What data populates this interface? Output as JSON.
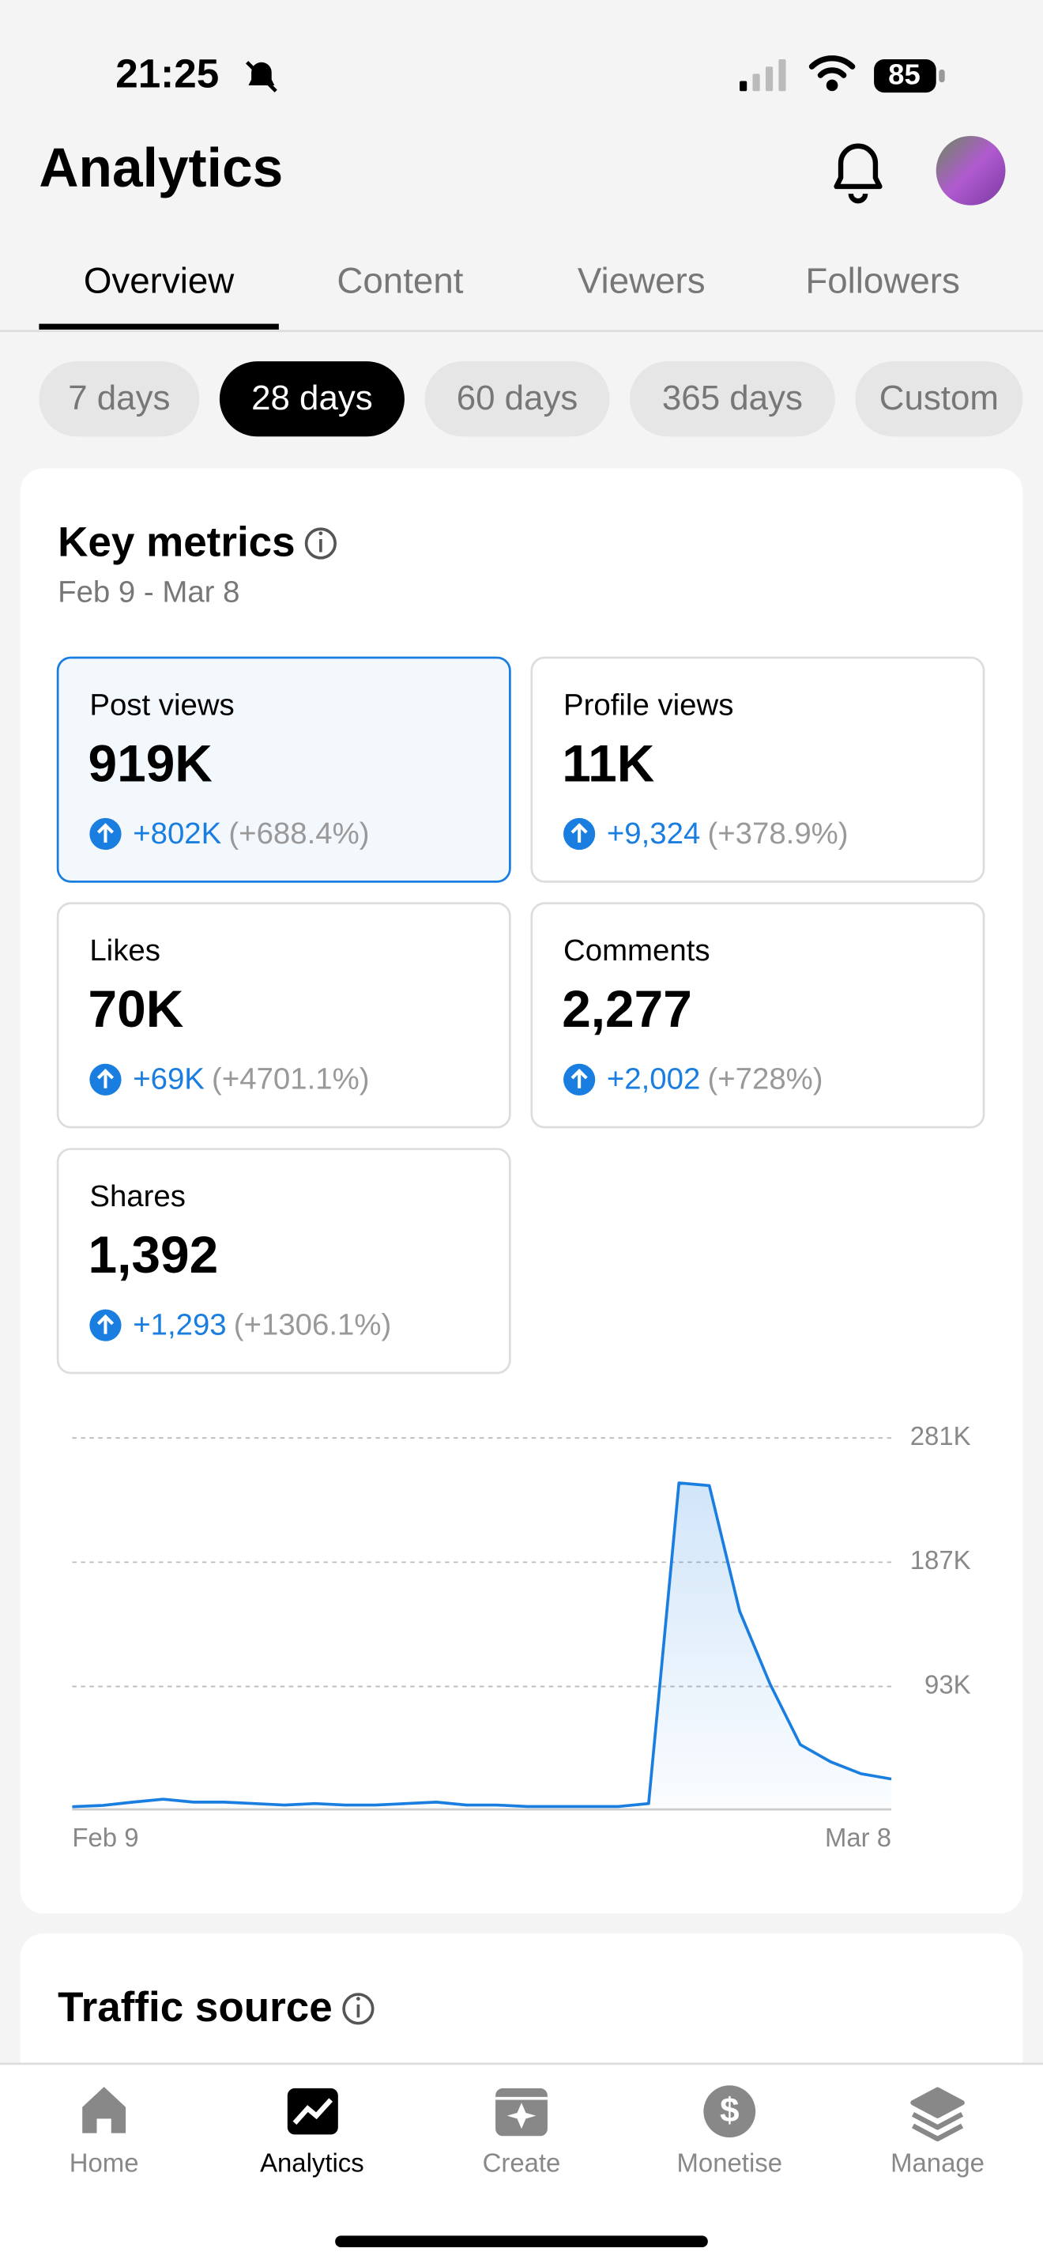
{
  "status_bar": {
    "time": "21:25",
    "battery": "85"
  },
  "header": {
    "title": "Analytics"
  },
  "tabs": [
    "Overview",
    "Content",
    "Viewers",
    "Followers"
  ],
  "periods": [
    "7 days",
    "28 days",
    "60 days",
    "365 days",
    "Custom"
  ],
  "key_metrics": {
    "title": "Key metrics",
    "date_range": "Feb 9 - Mar 8",
    "cards": [
      {
        "label": "Post views",
        "value": "919K",
        "change": "+802K",
        "percent": "(+688.4%)"
      },
      {
        "label": "Profile views",
        "value": "11K",
        "change": "+9,324",
        "percent": "(+378.9%)"
      },
      {
        "label": "Likes",
        "value": "70K",
        "change": "+69K",
        "percent": "(+4701.1%)"
      },
      {
        "label": "Comments",
        "value": "2,277",
        "change": "+2,002",
        "percent": "(+728%)"
      },
      {
        "label": "Shares",
        "value": "1,392",
        "change": "+1,293",
        "percent": "(+1306.1%)"
      }
    ]
  },
  "chart_data": {
    "type": "line",
    "color": "#1a7ee0",
    "categories": [
      "Feb 9",
      null,
      null,
      null,
      null,
      null,
      null,
      null,
      null,
      null,
      null,
      null,
      null,
      null,
      null,
      null,
      null,
      null,
      null,
      null,
      null,
      null,
      null,
      null,
      null,
      null,
      null,
      "Mar 8"
    ],
    "values": [
      2000,
      3000,
      5500,
      7700,
      5500,
      5500,
      4400,
      3300,
      4400,
      3300,
      3300,
      4400,
      5500,
      3300,
      3300,
      2200,
      2200,
      2200,
      2200,
      4400,
      247000,
      245000,
      150000,
      95000,
      49000,
      36000,
      27000,
      23000
    ],
    "ylim": [
      0,
      281000
    ],
    "yticks": [
      {
        "value": 93000,
        "label": "93K"
      },
      {
        "value": 187000,
        "label": "187K"
      },
      {
        "value": 281000,
        "label": "281K"
      }
    ],
    "grid": true
  },
  "traffic_source": {
    "title": "Traffic source"
  },
  "nav": [
    "Home",
    "Analytics",
    "Create",
    "Monetise",
    "Manage"
  ]
}
